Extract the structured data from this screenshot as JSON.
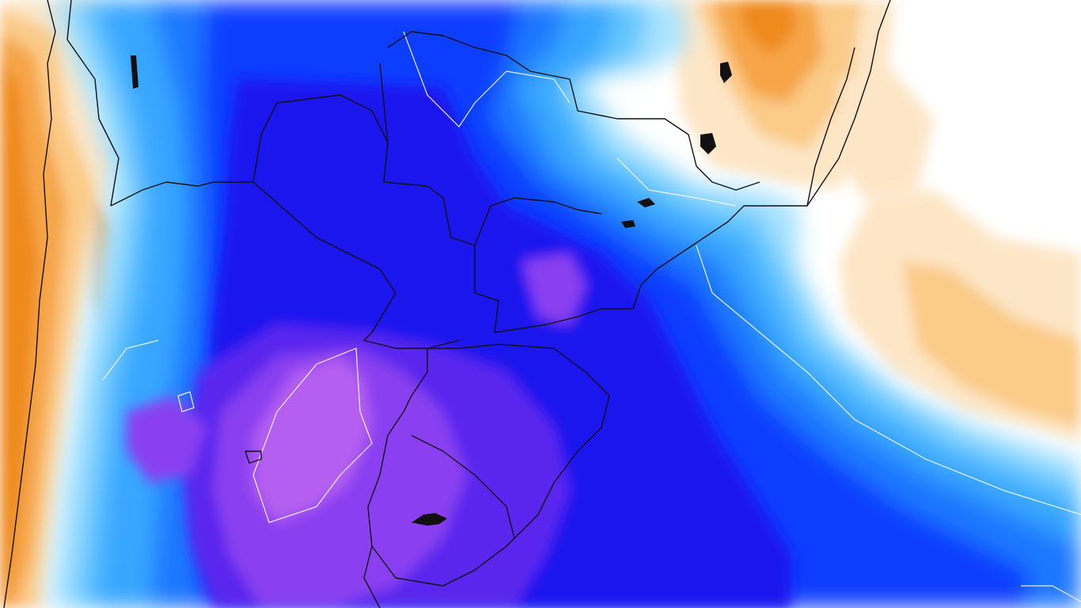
{
  "map": {
    "type": "temperature-anomaly-shaded-map",
    "region": "South America",
    "labels": [],
    "palette": {
      "violet": "#b45ef0",
      "purple": "#8a3ff0",
      "indigo": "#5a25ee",
      "deep_blue": "#1e14ee",
      "blue": "#0a3cff",
      "mid_blue": "#1f78ff",
      "light_blue": "#39a6ff",
      "sky": "#64c6ff",
      "pale_sky": "#a9e3ff",
      "near_zero": "#ffffff",
      "pale_orange": "#fde6c6",
      "light_orange": "#fbcb88",
      "orange": "#f6a64a",
      "deep_orange": "#ef8a1a"
    },
    "contour_color": "#ffffff",
    "border_color": "#111111"
  }
}
